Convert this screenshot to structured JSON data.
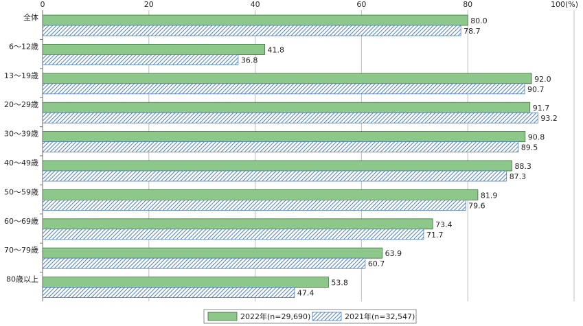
{
  "chart_data": {
    "type": "bar",
    "orientation": "horizontal",
    "categories": [
      "全体",
      "6～12歳",
      "13～19歳",
      "20～29歳",
      "30～39歳",
      "40～49歳",
      "50～59歳",
      "60～69歳",
      "70～79歳",
      "80歳以上"
    ],
    "series": [
      {
        "name": "2022年(n=29,690)",
        "values": [
          80.0,
          41.8,
          92.0,
          91.7,
          90.8,
          88.3,
          81.9,
          73.4,
          63.9,
          53.8
        ],
        "color": "#8dc88a",
        "pattern": "solid"
      },
      {
        "name": "2021年(n=32,547)",
        "values": [
          78.7,
          36.8,
          90.7,
          93.2,
          89.5,
          87.3,
          79.6,
          71.7,
          60.7,
          47.4
        ],
        "color": "#4a7ec4",
        "pattern": "diagonal-hatch"
      }
    ],
    "x_ticks": [
      "0",
      "20",
      "40",
      "60",
      "80",
      "100(%)"
    ],
    "xlim": [
      0,
      100
    ],
    "legend_position": "bottom-right",
    "grid": true
  }
}
